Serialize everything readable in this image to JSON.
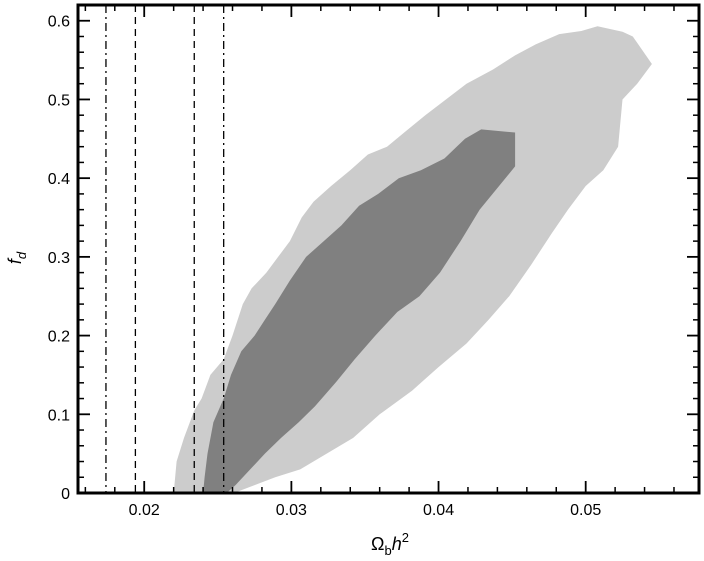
{
  "chart_data": {
    "type": "area",
    "title": "",
    "xlabel": {
      "main": "Ω",
      "sub": "b",
      "tail": "h",
      "sup": "2"
    },
    "ylabel": {
      "main": "f",
      "sub": "d"
    },
    "xlim": [
      0.0155,
      0.0577
    ],
    "ylim": [
      0,
      0.62
    ],
    "xticks": [
      0.02,
      0.03,
      0.04,
      0.05
    ],
    "xtick_labels": [
      "0.02",
      "0.03",
      "0.04",
      "0.05"
    ],
    "xminor_step": 0.002,
    "yticks": [
      0,
      0.1,
      0.2,
      0.3,
      0.4,
      0.5,
      0.6
    ],
    "ytick_labels": [
      "0",
      "0.1",
      "0.2",
      "0.3",
      "0.4",
      "0.5",
      "0.6"
    ],
    "yminor_step": 0.02,
    "grid": false,
    "legend": "none",
    "contours": [
      {
        "level": "outer",
        "color": "#cccccc",
        "points": [
          [
            0.022,
            0
          ],
          [
            0.0261,
            0
          ],
          [
            0.0275,
            0.01
          ],
          [
            0.0289,
            0.02
          ],
          [
            0.0306,
            0.03
          ],
          [
            0.0324,
            0.05
          ],
          [
            0.0342,
            0.07
          ],
          [
            0.036,
            0.1
          ],
          [
            0.0382,
            0.13
          ],
          [
            0.04,
            0.16
          ],
          [
            0.0419,
            0.19
          ],
          [
            0.0434,
            0.22
          ],
          [
            0.0448,
            0.25
          ],
          [
            0.0463,
            0.29
          ],
          [
            0.0477,
            0.33
          ],
          [
            0.0488,
            0.36
          ],
          [
            0.05,
            0.39
          ],
          [
            0.0512,
            0.41
          ],
          [
            0.0522,
            0.44
          ],
          [
            0.0525,
            0.5
          ],
          [
            0.0535,
            0.52
          ],
          [
            0.0545,
            0.545
          ],
          [
            0.0532,
            0.58
          ],
          [
            0.0525,
            0.586
          ],
          [
            0.0508,
            0.593
          ],
          [
            0.0497,
            0.587
          ],
          [
            0.0482,
            0.583
          ],
          [
            0.0466,
            0.57
          ],
          [
            0.0452,
            0.556
          ],
          [
            0.0437,
            0.538
          ],
          [
            0.0419,
            0.52
          ],
          [
            0.0405,
            0.5
          ],
          [
            0.0391,
            0.48
          ],
          [
            0.0378,
            0.46
          ],
          [
            0.0365,
            0.44
          ],
          [
            0.0352,
            0.43
          ],
          [
            0.034,
            0.41
          ],
          [
            0.0327,
            0.39
          ],
          [
            0.0315,
            0.37
          ],
          [
            0.0307,
            0.35
          ],
          [
            0.0299,
            0.32
          ],
          [
            0.0291,
            0.3
          ],
          [
            0.0283,
            0.28
          ],
          [
            0.0273,
            0.26
          ],
          [
            0.0267,
            0.24
          ],
          [
            0.026,
            0.2
          ],
          [
            0.0254,
            0.17
          ],
          [
            0.0245,
            0.15
          ],
          [
            0.0239,
            0.12
          ],
          [
            0.0234,
            0.105
          ],
          [
            0.0227,
            0.07
          ],
          [
            0.0222,
            0.04
          ]
        ]
      },
      {
        "level": "inner",
        "color": "#808080",
        "points": [
          [
            0.024,
            0
          ],
          [
            0.0256,
            0
          ],
          [
            0.0262,
            0.01
          ],
          [
            0.0272,
            0.03
          ],
          [
            0.0282,
            0.05
          ],
          [
            0.0293,
            0.07
          ],
          [
            0.0305,
            0.09
          ],
          [
            0.0316,
            0.11
          ],
          [
            0.033,
            0.14
          ],
          [
            0.0343,
            0.17
          ],
          [
            0.0357,
            0.2
          ],
          [
            0.0372,
            0.23
          ],
          [
            0.0387,
            0.25
          ],
          [
            0.0401,
            0.28
          ],
          [
            0.0415,
            0.32
          ],
          [
            0.0428,
            0.36
          ],
          [
            0.0452,
            0.415
          ],
          [
            0.0452,
            0.458
          ],
          [
            0.0429,
            0.462
          ],
          [
            0.0418,
            0.45
          ],
          [
            0.0404,
            0.425
          ],
          [
            0.0388,
            0.41
          ],
          [
            0.0373,
            0.4
          ],
          [
            0.0359,
            0.38
          ],
          [
            0.0346,
            0.365
          ],
          [
            0.0334,
            0.34
          ],
          [
            0.0322,
            0.32
          ],
          [
            0.031,
            0.3
          ],
          [
            0.0299,
            0.27
          ],
          [
            0.0289,
            0.24
          ],
          [
            0.0282,
            0.22
          ],
          [
            0.0275,
            0.2
          ],
          [
            0.0266,
            0.18
          ],
          [
            0.0259,
            0.15
          ],
          [
            0.0254,
            0.12
          ],
          [
            0.0247,
            0.09
          ],
          [
            0.0243,
            0.05
          ],
          [
            0.0241,
            0.02
          ]
        ]
      }
    ],
    "vlines": [
      {
        "x": 0.0174,
        "style": "dashdot",
        "color": "#000000"
      },
      {
        "x": 0.0194,
        "style": "dashed",
        "color": "#000000"
      },
      {
        "x": 0.0234,
        "style": "dashed",
        "color": "#000000"
      },
      {
        "x": 0.0254,
        "style": "dashdot",
        "color": "#000000"
      }
    ],
    "colors": {
      "outer": "#cccccc",
      "inner": "#808080",
      "axes": "#000000",
      "background": "#ffffff"
    }
  }
}
